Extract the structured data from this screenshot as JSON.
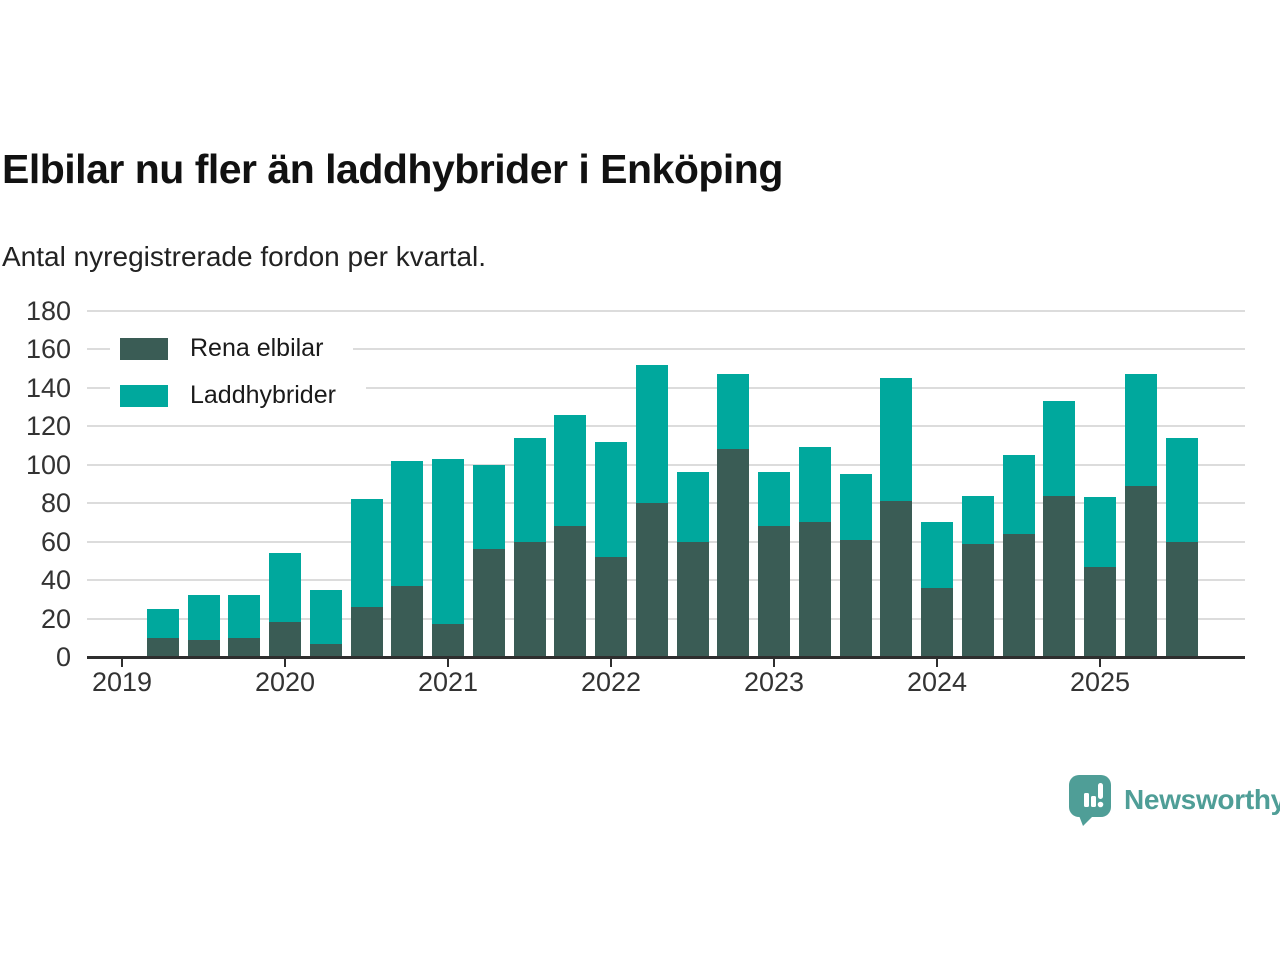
{
  "header": {
    "title": "Elbilar nu fler än laddhybrider i Enköping",
    "subtitle": "Antal nyregistrerade fordon per kvartal."
  },
  "colors": {
    "elbilar": "#3A5C55",
    "laddhybrider": "#00A89D",
    "grid": "#DCDCDC",
    "axis": "#2E2E2E",
    "tick_label": "#333333",
    "logo": "#4F9E97"
  },
  "legend": {
    "items": [
      {
        "label": "Rena elbilar",
        "color_key": "elbilar"
      },
      {
        "label": "Laddhybrider",
        "color_key": "laddhybrider"
      }
    ]
  },
  "chart_data": {
    "type": "bar",
    "stacked": true,
    "title": "Elbilar nu fler än laddhybrider i Enköping",
    "subtitle": "Antal nyregistrerade fordon per kvartal.",
    "categories": [
      "2019-Q2",
      "2019-Q3",
      "2019-Q4",
      "2020-Q1",
      "2020-Q2",
      "2020-Q3",
      "2020-Q4",
      "2021-Q1",
      "2021-Q2",
      "2021-Q3",
      "2021-Q4",
      "2022-Q1",
      "2022-Q2",
      "2022-Q3",
      "2022-Q4",
      "2023-Q1",
      "2023-Q2",
      "2023-Q3",
      "2023-Q4",
      "2024-Q1",
      "2024-Q2",
      "2024-Q3",
      "2024-Q4",
      "2025-Q1",
      "2025-Q2",
      "2025-Q3"
    ],
    "series": [
      {
        "name": "Rena elbilar",
        "color": "#3A5C55",
        "values": [
          10,
          9,
          10,
          18,
          7,
          26,
          37,
          17,
          56,
          60,
          68,
          52,
          80,
          60,
          108,
          68,
          70,
          61,
          81,
          36,
          59,
          64,
          84,
          47,
          89,
          60
        ]
      },
      {
        "name": "Laddhybrider",
        "color": "#00A89D",
        "values": [
          15,
          23,
          22,
          36,
          28,
          56,
          65,
          86,
          44,
          54,
          58,
          60,
          72,
          36,
          39,
          28,
          39,
          34,
          64,
          34,
          25,
          41,
          49,
          36,
          58,
          54
        ]
      }
    ],
    "x_tick_labels": [
      "2019",
      "2020",
      "2021",
      "2022",
      "2023",
      "2024",
      "2025"
    ],
    "y_ticks": [
      0,
      20,
      40,
      60,
      80,
      100,
      120,
      140,
      160,
      180
    ],
    "ylim": [
      0,
      180
    ],
    "grid": true,
    "legend_position": "top-left"
  },
  "logo": {
    "text": "Newsworthy",
    "icon": "newsworthy-speech-bubble-bar-chart-icon"
  }
}
